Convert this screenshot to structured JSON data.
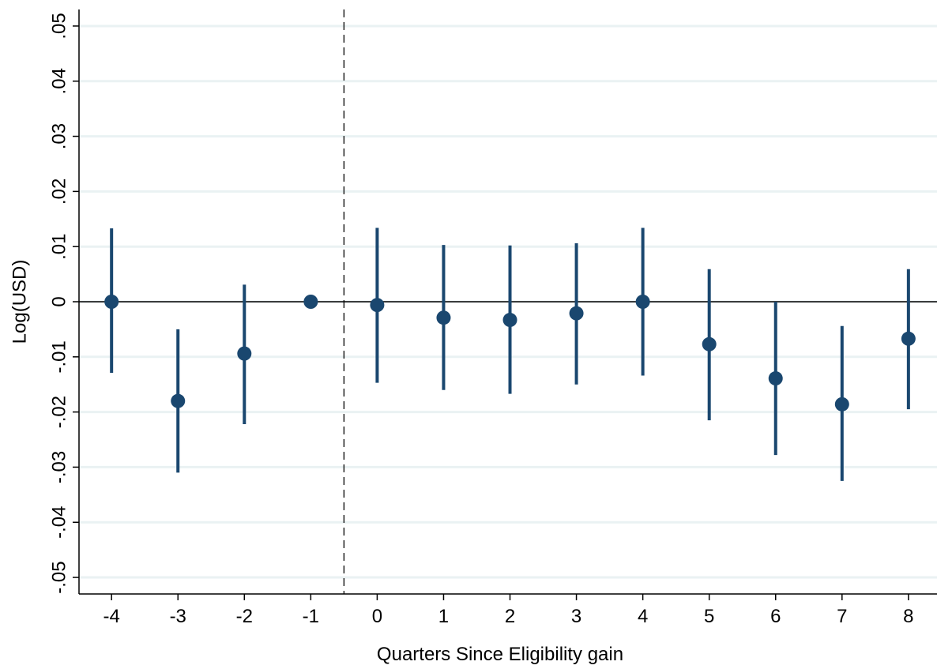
{
  "chart_data": {
    "type": "errorbar",
    "x_label": "Quarters Since Eligibility gain",
    "y_label": "Log(USD)",
    "x": [
      -4,
      -3,
      -2,
      -1,
      0,
      1,
      2,
      3,
      4,
      5,
      6,
      7,
      8
    ],
    "series": [
      {
        "color": "#1a476f",
        "values": [
          0,
          -0.018,
          -0.0094,
          0,
          -0.0006,
          -0.0029,
          -0.0033,
          -0.0021,
          0,
          -0.0077,
          -0.0139,
          -0.0186,
          -0.0067
        ],
        "lower": [
          -0.0129,
          -0.031,
          -0.0222,
          null,
          -0.0147,
          -0.016,
          -0.0167,
          -0.015,
          -0.0134,
          -0.0215,
          -0.0278,
          -0.0325,
          -0.0195
        ],
        "upper": [
          0.0133,
          -0.005,
          0.0031,
          null,
          0.0134,
          0.0103,
          0.0102,
          0.0106,
          0.0134,
          0.0059,
          0,
          -0.0044,
          0.0059
        ]
      }
    ],
    "xlim": [
      -4.49,
      8.43
    ],
    "xticks": [
      -4,
      -3,
      -2,
      -1,
      0,
      1,
      2,
      3,
      4,
      5,
      6,
      7,
      8
    ],
    "ylim": [
      -0.053,
      0.053
    ],
    "yticks": [
      {
        "value": -0.05,
        "label": "-.05"
      },
      {
        "value": -0.04,
        "label": "-.04"
      },
      {
        "value": -0.03,
        "label": "-.03"
      },
      {
        "value": -0.02,
        "label": "-.02"
      },
      {
        "value": -0.01,
        "label": "-.01"
      },
      0,
      {
        "value": 0.01,
        "label": ".01"
      },
      {
        "value": 0.02,
        "label": ".02"
      },
      {
        "value": 0.03,
        "label": ".03"
      },
      {
        "value": 0.04,
        "label": ".04"
      },
      {
        "value": 0.05,
        "label": ".05"
      }
    ],
    "grid": true,
    "hline": 0,
    "vline": -0.5
  }
}
